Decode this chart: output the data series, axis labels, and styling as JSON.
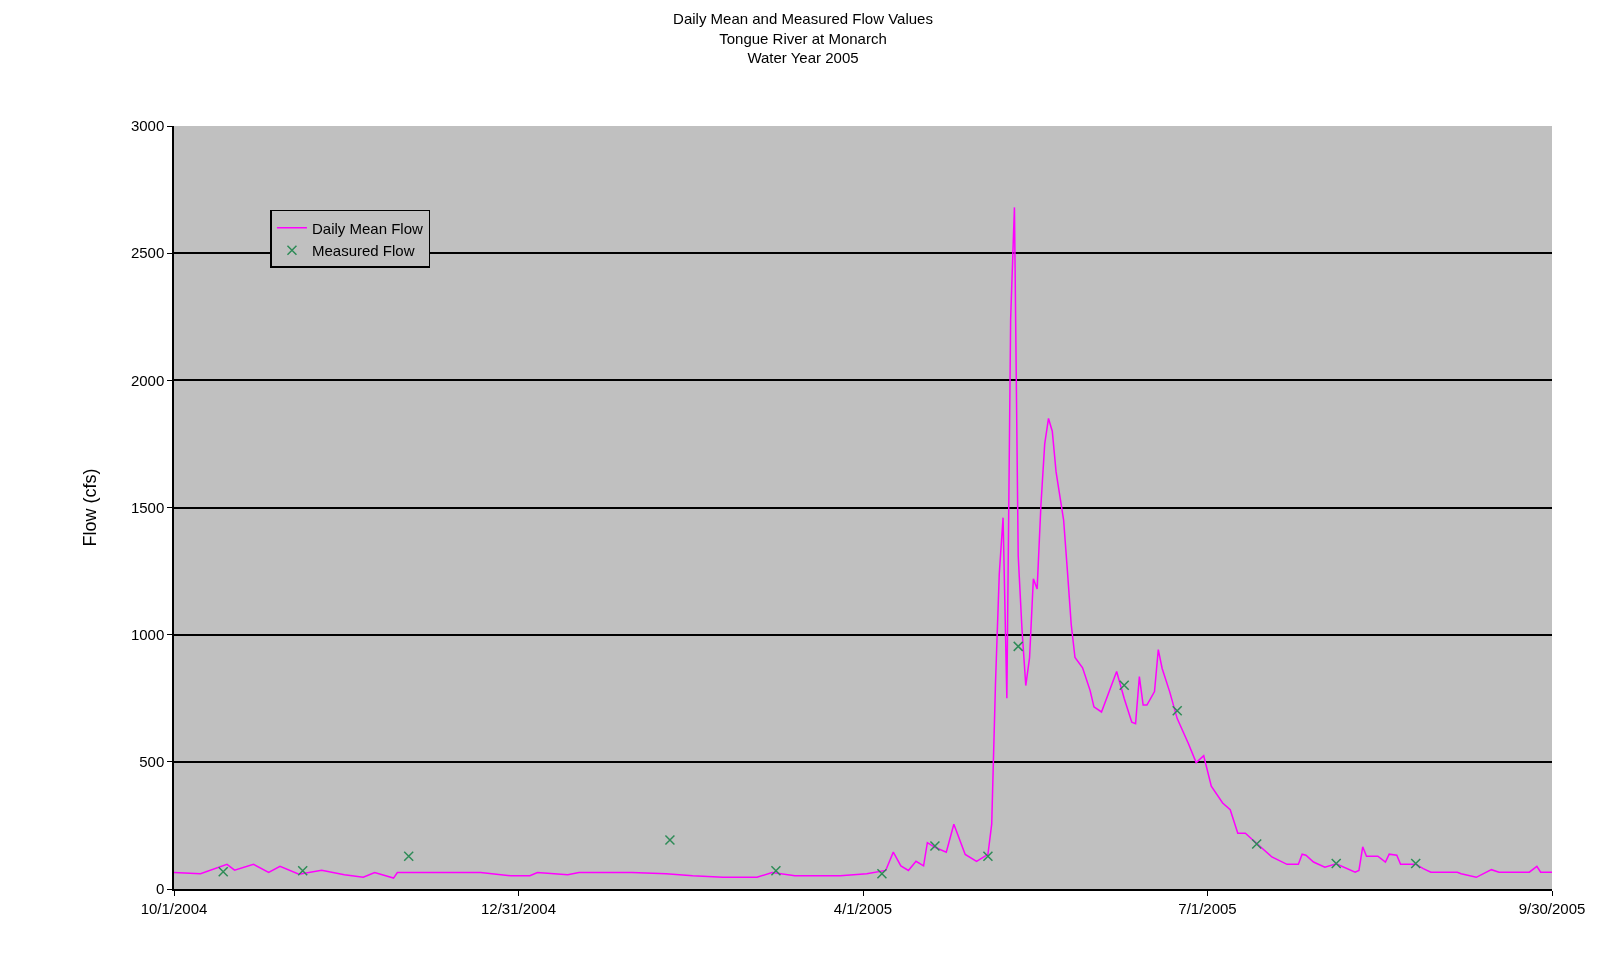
{
  "chart_data": {
    "type": "line",
    "title": "Daily Mean and Measured Flow Values\nTongue River at Monarch\nWater Year 2005",
    "ylabel": "Flow (cfs)",
    "xlim": [
      "2004-10-01",
      "2005-09-30"
    ],
    "xticks": [
      {
        "value": "2004-10-01",
        "label": "10/1/2004"
      },
      {
        "value": "2004-12-31",
        "label": "12/31/2004"
      },
      {
        "value": "2005-04-01",
        "label": "4/1/2005"
      },
      {
        "value": "2005-07-01",
        "label": "7/1/2005"
      },
      {
        "value": "2005-09-30",
        "label": "9/30/2005"
      }
    ],
    "ylim": [
      0,
      3000
    ],
    "yticks": [
      0,
      500,
      1000,
      1500,
      2000,
      2500,
      3000
    ],
    "grid": "y",
    "legend": "top left",
    "series": [
      {
        "name": "Daily Mean Flow",
        "color": "#ff00ff",
        "marker": "none",
        "line_style": "solid",
        "x": [
          "2004-10-01",
          "2004-10-08",
          "2004-10-15",
          "2004-10-17",
          "2004-10-22",
          "2004-10-26",
          "2004-10-29",
          "2004-11-03",
          "2004-11-09",
          "2004-11-15",
          "2004-11-20",
          "2004-11-23",
          "2004-11-28",
          "2004-11-29",
          "2004-12-21",
          "2004-12-29",
          "2005-01-03",
          "2005-01-05",
          "2005-01-13",
          "2005-01-16",
          "2005-01-30",
          "2005-02-08",
          "2005-02-15",
          "2005-02-23",
          "2005-03-04",
          "2005-03-08",
          "2005-03-14",
          "2005-03-26",
          "2005-04-02",
          "2005-04-07",
          "2005-04-09",
          "2005-04-11",
          "2005-04-13",
          "2005-04-15",
          "2005-04-17",
          "2005-04-18",
          "2005-04-20",
          "2005-04-23",
          "2005-04-25",
          "2005-04-28",
          "2005-05-01",
          "2005-05-04",
          "2005-05-05",
          "2005-05-06",
          "2005-05-07",
          "2005-05-08",
          "2005-05-09",
          "2005-05-10",
          "2005-05-11",
          "2005-05-12",
          "2005-05-13",
          "2005-05-14",
          "2005-05-15",
          "2005-05-16",
          "2005-05-17",
          "2005-05-18",
          "2005-05-19",
          "2005-05-20",
          "2005-05-21",
          "2005-05-22",
          "2005-05-24",
          "2005-05-25",
          "2005-05-26",
          "2005-05-27",
          "2005-05-29",
          "2005-05-31",
          "2005-06-01",
          "2005-06-03",
          "2005-06-07",
          "2005-06-09",
          "2005-06-11",
          "2005-06-12",
          "2005-06-13",
          "2005-06-14",
          "2005-06-15",
          "2005-06-17",
          "2005-06-18",
          "2005-06-19",
          "2005-06-21",
          "2005-06-23",
          "2005-06-26",
          "2005-06-28",
          "2005-06-30",
          "2005-07-02",
          "2005-07-05",
          "2005-07-07",
          "2005-07-09",
          "2005-07-11",
          "2005-07-14",
          "2005-07-18",
          "2005-07-22",
          "2005-07-25",
          "2005-07-26",
          "2005-07-27",
          "2005-07-29",
          "2005-08-01",
          "2005-08-04",
          "2005-08-09",
          "2005-08-10",
          "2005-08-11",
          "2005-08-12",
          "2005-08-15",
          "2005-08-17",
          "2005-08-18",
          "2005-08-20",
          "2005-08-21",
          "2005-08-25",
          "2005-08-27",
          "2005-08-29",
          "2005-09-05",
          "2005-09-06",
          "2005-09-10",
          "2005-09-14",
          "2005-09-16",
          "2005-09-24",
          "2005-09-26",
          "2005-09-27",
          "2005-09-30"
        ],
        "values": [
          65,
          60,
          97,
          74,
          97,
          65,
          89,
          58,
          74,
          56,
          46,
          65,
          43,
          65,
          65,
          52,
          52,
          65,
          56,
          65,
          65,
          60,
          52,
          46,
          46,
          65,
          52,
          52,
          60,
          73,
          145,
          91,
          73,
          109,
          91,
          182,
          164,
          145,
          255,
          136,
          109,
          136,
          255,
          810,
          1240,
          1460,
          750,
          2240,
          2680,
          1310,
          1020,
          800,
          910,
          1220,
          1180,
          1510,
          1750,
          1850,
          1800,
          1640,
          1450,
          1250,
          1040,
          910,
          870,
          780,
          716,
          696,
          855,
          749,
          656,
          650,
          835,
          723,
          723,
          776,
          941,
          868,
          776,
          670,
          570,
          497,
          524,
          404,
          338,
          312,
          219,
          219,
          179,
          126,
          97,
          97,
          137,
          133,
          106,
          86,
          99,
          66,
          73,
          166,
          129,
          129,
          106,
          137,
          133,
          97,
          97,
          80,
          66,
          66,
          60,
          46,
          76,
          66,
          66,
          89,
          66,
          66
        ]
      },
      {
        "name": "Measured Flow",
        "type": "scatter",
        "color": "#2e8b57",
        "marker": "cross",
        "x": [
          "2004-10-14",
          "2004-11-04",
          "2004-12-02",
          "2005-02-09",
          "2005-03-09",
          "2005-04-06",
          "2005-04-20",
          "2005-05-04",
          "2005-05-12",
          "2005-06-09",
          "2005-06-23",
          "2005-07-14",
          "2005-08-04",
          "2005-08-25"
        ],
        "values": [
          68,
          72,
          129,
          193,
          72,
          60,
          169,
          129,
          954,
          801,
          701,
          177,
          100,
          100
        ]
      }
    ]
  }
}
